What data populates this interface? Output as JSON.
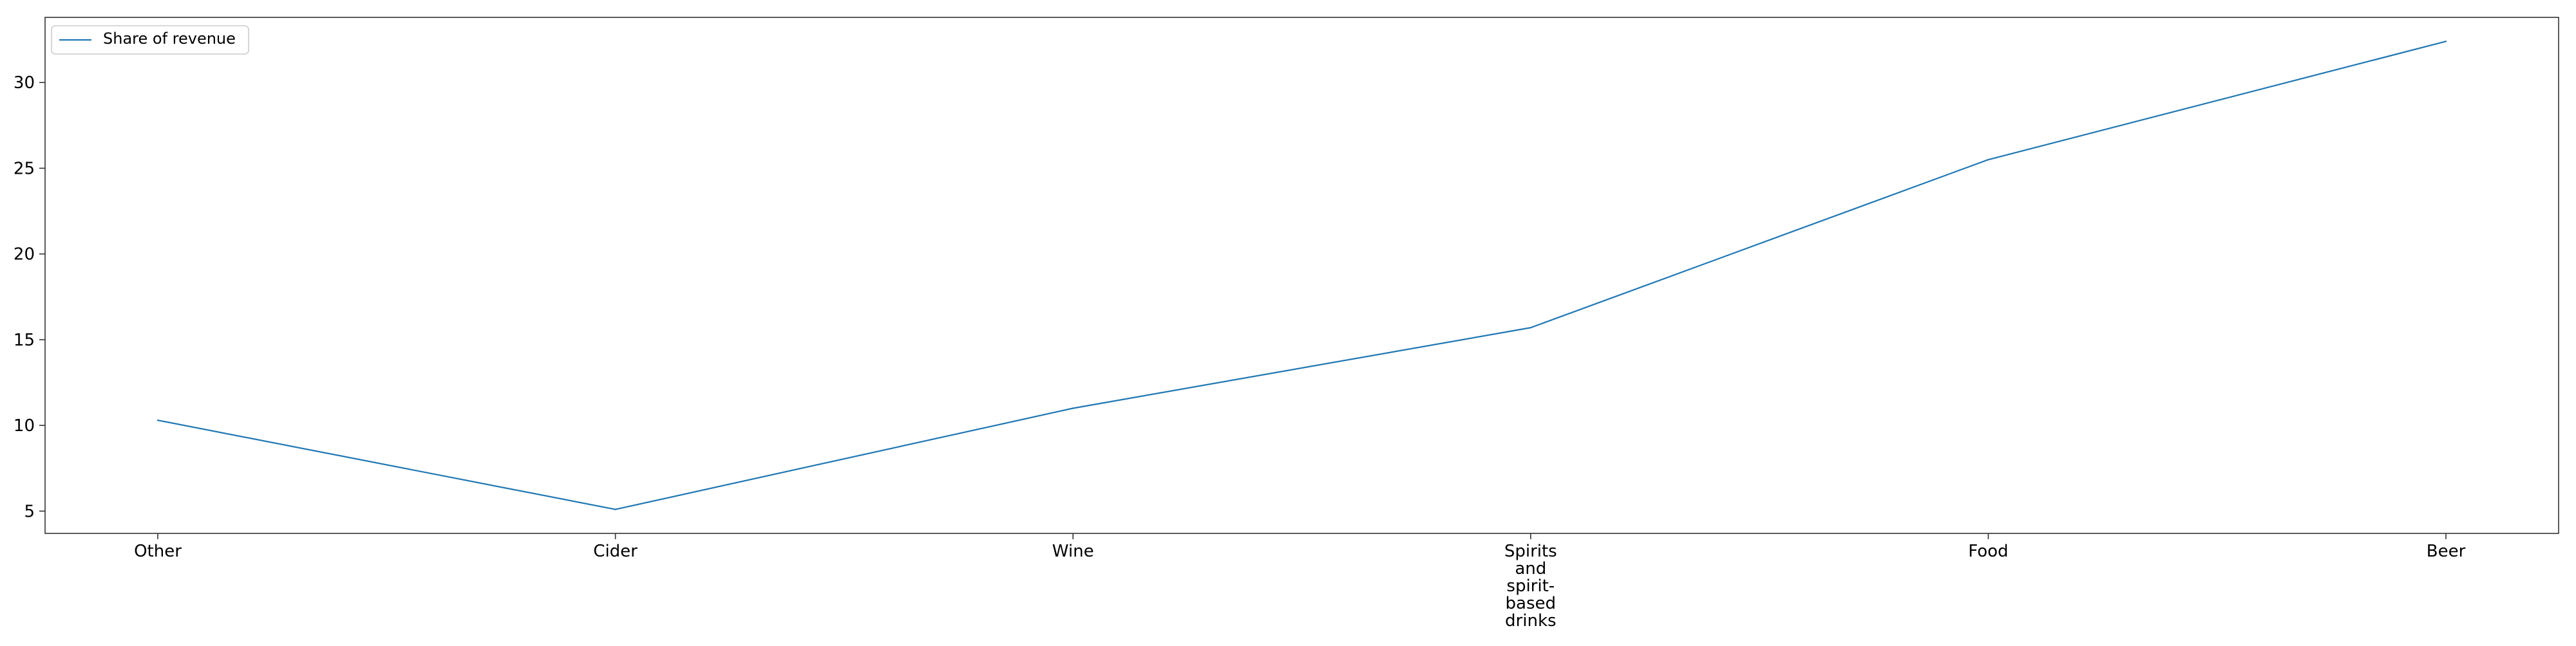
{
  "chart_data": {
    "type": "line",
    "categories": [
      "Other",
      "Cider",
      "Wine",
      "Spirits\nand\nspirit-\nbased\ndrinks",
      "Food",
      "Beer"
    ],
    "series": [
      {
        "name": "Share of revenue",
        "values": [
          10.3,
          5.1,
          11.0,
          15.7,
          25.5,
          32.4
        ],
        "color": "#1f77b4"
      }
    ],
    "xlabel": "",
    "ylabel": "",
    "ylim": [
      3.7,
      33.8
    ],
    "yticks": [
      5,
      10,
      15,
      20,
      25,
      30
    ],
    "grid": false,
    "legend_position": "upper-left"
  }
}
